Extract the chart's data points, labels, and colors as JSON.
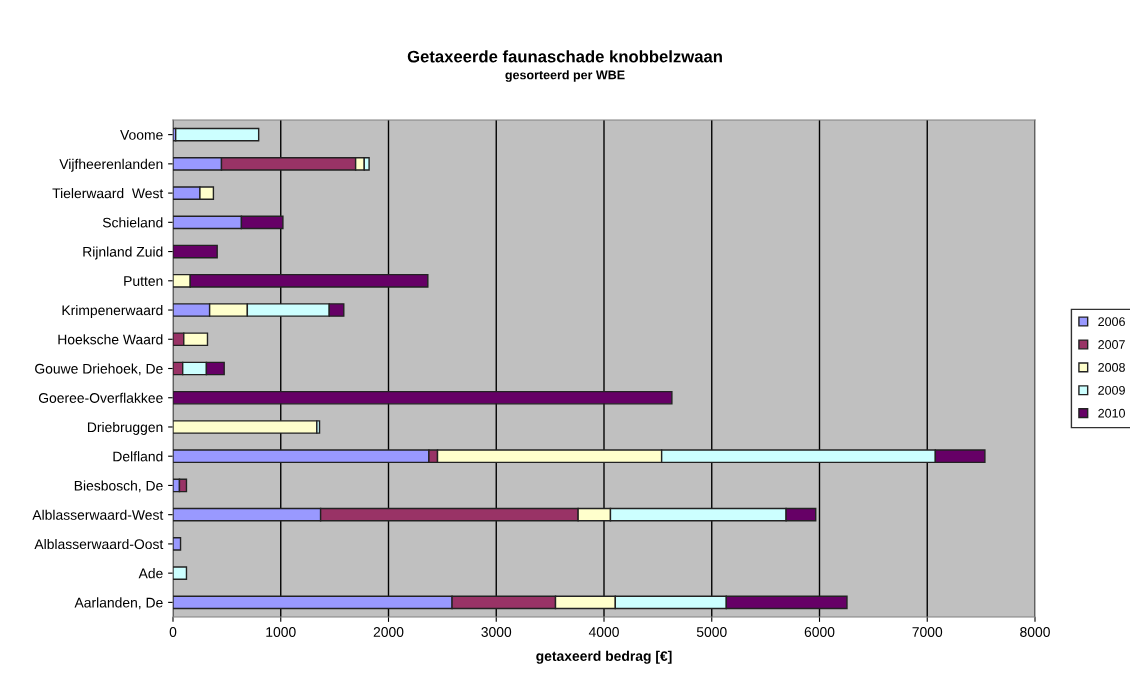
{
  "chart_data": {
    "type": "bar",
    "orientation": "horizontal",
    "stacked": true,
    "title": "Getaxeerde faunaschade knobbelzwaan",
    "subtitle": "gesorteerd per WBE",
    "xlabel": "getaxeerd bedrag [€]",
    "categories": [
      "Voome",
      "Vijfheerenlanden",
      "Tielerwaard  West",
      "Schieland",
      "Rijnland Zuid",
      "Putten",
      "Krimpenerwaard",
      "Hoeksche Waard",
      "Gouwe Driehoek, De",
      "Goeree-Overflakkee",
      "Driebruggen",
      "Delfland",
      "Biesbosch, De",
      "Alblasserwaard-West",
      "Alblasserwaard-Oost",
      "Ade",
      "Aarlanden, De"
    ],
    "series": [
      {
        "name": "2006",
        "color": "#9999ff",
        "values": [
          25,
          450,
          250,
          635,
          null,
          null,
          340,
          null,
          null,
          null,
          null,
          2375,
          60,
          1370,
          70,
          null,
          2590
        ]
      },
      {
        "name": "2007",
        "color": "#993366",
        "values": [
          null,
          1245,
          null,
          null,
          null,
          null,
          null,
          100,
          90,
          null,
          null,
          80,
          65,
          2390,
          null,
          null,
          960
        ]
      },
      {
        "name": "2008",
        "color": "#ffffcc",
        "values": [
          null,
          80,
          125,
          null,
          null,
          160,
          350,
          220,
          null,
          null,
          1335,
          2080,
          null,
          300,
          null,
          null,
          555
        ]
      },
      {
        "name": "2009",
        "color": "#ccffff",
        "values": [
          770,
          45,
          null,
          null,
          null,
          null,
          760,
          null,
          220,
          null,
          25,
          2540,
          null,
          1630,
          null,
          125,
          1030
        ]
      },
      {
        "name": "2010",
        "color": "#660066",
        "values": [
          null,
          null,
          null,
          385,
          410,
          2205,
          135,
          null,
          165,
          4630,
          null,
          460,
          null,
          275,
          null,
          null,
          1120
        ]
      }
    ],
    "xlim": [
      0,
      8000
    ],
    "xticks": [
      0,
      1000,
      2000,
      3000,
      4000,
      5000,
      6000,
      7000,
      8000
    ],
    "grid": "x",
    "legend": "right"
  }
}
